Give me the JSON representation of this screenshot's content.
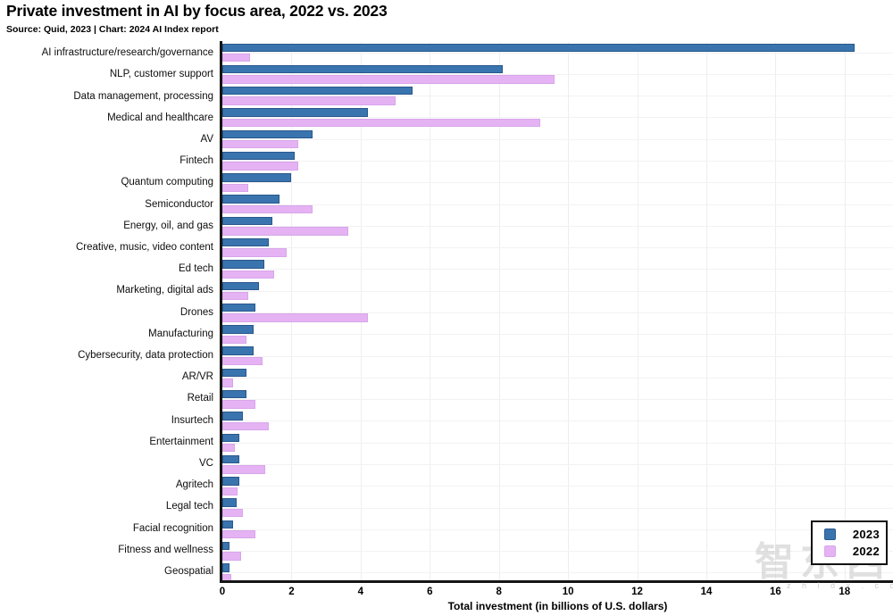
{
  "header": {
    "title": "Private investment in AI by focus area, 2022 vs. 2023",
    "source": "Source: Quid, 2023 | Chart: 2024 AI Index report"
  },
  "chart_data": {
    "type": "bar",
    "orientation": "horizontal",
    "title": "Private investment in AI by focus area, 2022 vs. 2023",
    "xlabel": "Total investment (in billions of U.S. dollars)",
    "xlim": [
      0,
      19.4
    ],
    "xticks": [
      0,
      2,
      4,
      6,
      8,
      10,
      12,
      14,
      16,
      18
    ],
    "grid": "light vertical lines at even values, light horizontal lines at category centers",
    "legend_position": "bottom-right",
    "categories": [
      "AI infrastructure/research/governance",
      "NLP, customer support",
      "Data management, processing",
      "Medical and healthcare",
      "AV",
      "Fintech",
      "Quantum computing",
      "Semiconductor",
      "Energy, oil, and gas",
      "Creative, music, video content",
      "Ed tech",
      "Marketing, digital ads",
      "Drones",
      "Manufacturing",
      "Cybersecurity, data protection",
      "AR/VR",
      "Retail",
      "Insurtech",
      "Entertainment",
      "VC",
      "Agritech",
      "Legal tech",
      "Facial recognition",
      "Fitness and wellness",
      "Geospatial"
    ],
    "series": [
      {
        "name": "2023",
        "color": "#3a74ae",
        "border_color": "#29588c",
        "values": [
          18.3,
          8.1,
          5.5,
          4.2,
          2.6,
          2.1,
          2.0,
          1.65,
          1.45,
          1.35,
          1.2,
          1.05,
          0.95,
          0.9,
          0.9,
          0.7,
          0.7,
          0.6,
          0.5,
          0.5,
          0.5,
          0.4,
          0.3,
          0.2,
          0.2
        ]
      },
      {
        "name": "2022",
        "color": "#e5b3f4",
        "border_color": "#d8a5ea",
        "values": [
          0.8,
          9.6,
          5.0,
          9.2,
          2.2,
          2.2,
          0.75,
          2.6,
          3.65,
          1.85,
          1.5,
          0.75,
          4.2,
          0.7,
          1.15,
          0.3,
          0.95,
          1.35,
          0.35,
          1.25,
          0.45,
          0.6,
          0.95,
          0.55,
          0.25
        ]
      }
    ]
  },
  "watermark": {
    "text": "智东西",
    "subtext": "z h i d x . c o m"
  }
}
